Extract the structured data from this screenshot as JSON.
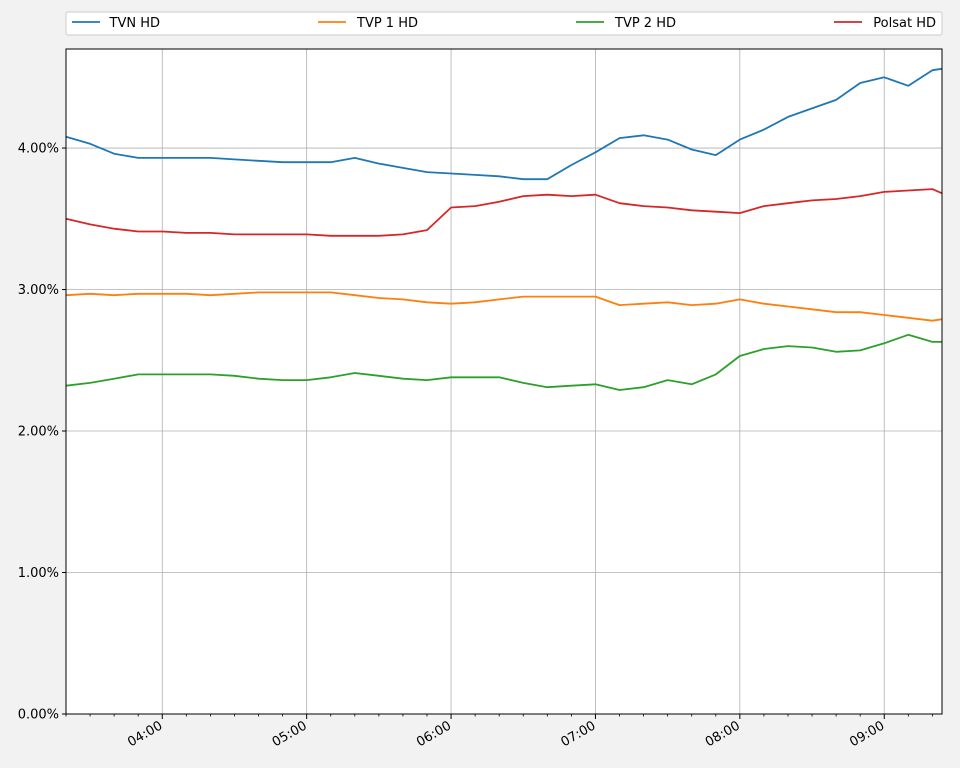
{
  "chart_data": {
    "type": "line",
    "title": "",
    "xlabel": "",
    "ylabel": "",
    "y_unit": "%",
    "grid": true,
    "legend_position": "top",
    "xlim": [
      "03:20",
      "09:24"
    ],
    "ylim": [
      0,
      4.7
    ],
    "x_ticks": [
      "04:00",
      "05:00",
      "06:00",
      "07:00",
      "08:00",
      "09:00"
    ],
    "y_ticks": [
      "0.00%",
      "1.00%",
      "2.00%",
      "3.00%",
      "4.00%"
    ],
    "x": [
      "03:20",
      "03:30",
      "03:40",
      "03:50",
      "04:00",
      "04:10",
      "04:20",
      "04:30",
      "04:40",
      "04:50",
      "05:00",
      "05:10",
      "05:20",
      "05:30",
      "05:40",
      "05:50",
      "06:00",
      "06:10",
      "06:20",
      "06:30",
      "06:40",
      "06:50",
      "07:00",
      "07:10",
      "07:20",
      "07:30",
      "07:40",
      "07:50",
      "08:00",
      "08:10",
      "08:20",
      "08:30",
      "08:40",
      "08:50",
      "09:00",
      "09:10",
      "09:20",
      "09:24"
    ],
    "series": [
      {
        "name": "TVN HD",
        "color": "#1f77b4",
        "values": [
          4.08,
          4.03,
          3.96,
          3.93,
          3.93,
          3.93,
          3.93,
          3.92,
          3.91,
          3.9,
          3.9,
          3.9,
          3.93,
          3.89,
          3.86,
          3.83,
          3.82,
          3.81,
          3.8,
          3.78,
          3.78,
          3.88,
          3.97,
          4.07,
          4.09,
          4.06,
          3.99,
          3.95,
          4.06,
          4.13,
          4.22,
          4.28,
          4.34,
          4.46,
          4.5,
          4.44,
          4.55,
          4.56
        ]
      },
      {
        "name": "TVP 1 HD",
        "color": "#ff7f0e",
        "values": [
          2.96,
          2.97,
          2.96,
          2.97,
          2.97,
          2.97,
          2.96,
          2.97,
          2.98,
          2.98,
          2.98,
          2.98,
          2.96,
          2.94,
          2.93,
          2.91,
          2.9,
          2.91,
          2.93,
          2.95,
          2.95,
          2.95,
          2.95,
          2.89,
          2.9,
          2.91,
          2.89,
          2.9,
          2.93,
          2.9,
          2.88,
          2.86,
          2.84,
          2.84,
          2.82,
          2.8,
          2.78,
          2.79
        ]
      },
      {
        "name": "TVP 2 HD",
        "color": "#2ca02c",
        "values": [
          2.32,
          2.34,
          2.37,
          2.4,
          2.4,
          2.4,
          2.4,
          2.39,
          2.37,
          2.36,
          2.36,
          2.38,
          2.41,
          2.39,
          2.37,
          2.36,
          2.38,
          2.38,
          2.38,
          2.34,
          2.31,
          2.32,
          2.33,
          2.29,
          2.31,
          2.36,
          2.33,
          2.4,
          2.53,
          2.58,
          2.6,
          2.59,
          2.56,
          2.57,
          2.62,
          2.68,
          2.63,
          2.63
        ]
      },
      {
        "name": "Polsat HD",
        "color": "#d62728",
        "values": [
          3.5,
          3.46,
          3.43,
          3.41,
          3.41,
          3.4,
          3.4,
          3.39,
          3.39,
          3.39,
          3.39,
          3.38,
          3.38,
          3.38,
          3.39,
          3.42,
          3.58,
          3.59,
          3.62,
          3.66,
          3.67,
          3.66,
          3.67,
          3.61,
          3.59,
          3.58,
          3.56,
          3.55,
          3.54,
          3.59,
          3.61,
          3.63,
          3.64,
          3.66,
          3.69,
          3.7,
          3.71,
          3.68
        ]
      }
    ]
  }
}
